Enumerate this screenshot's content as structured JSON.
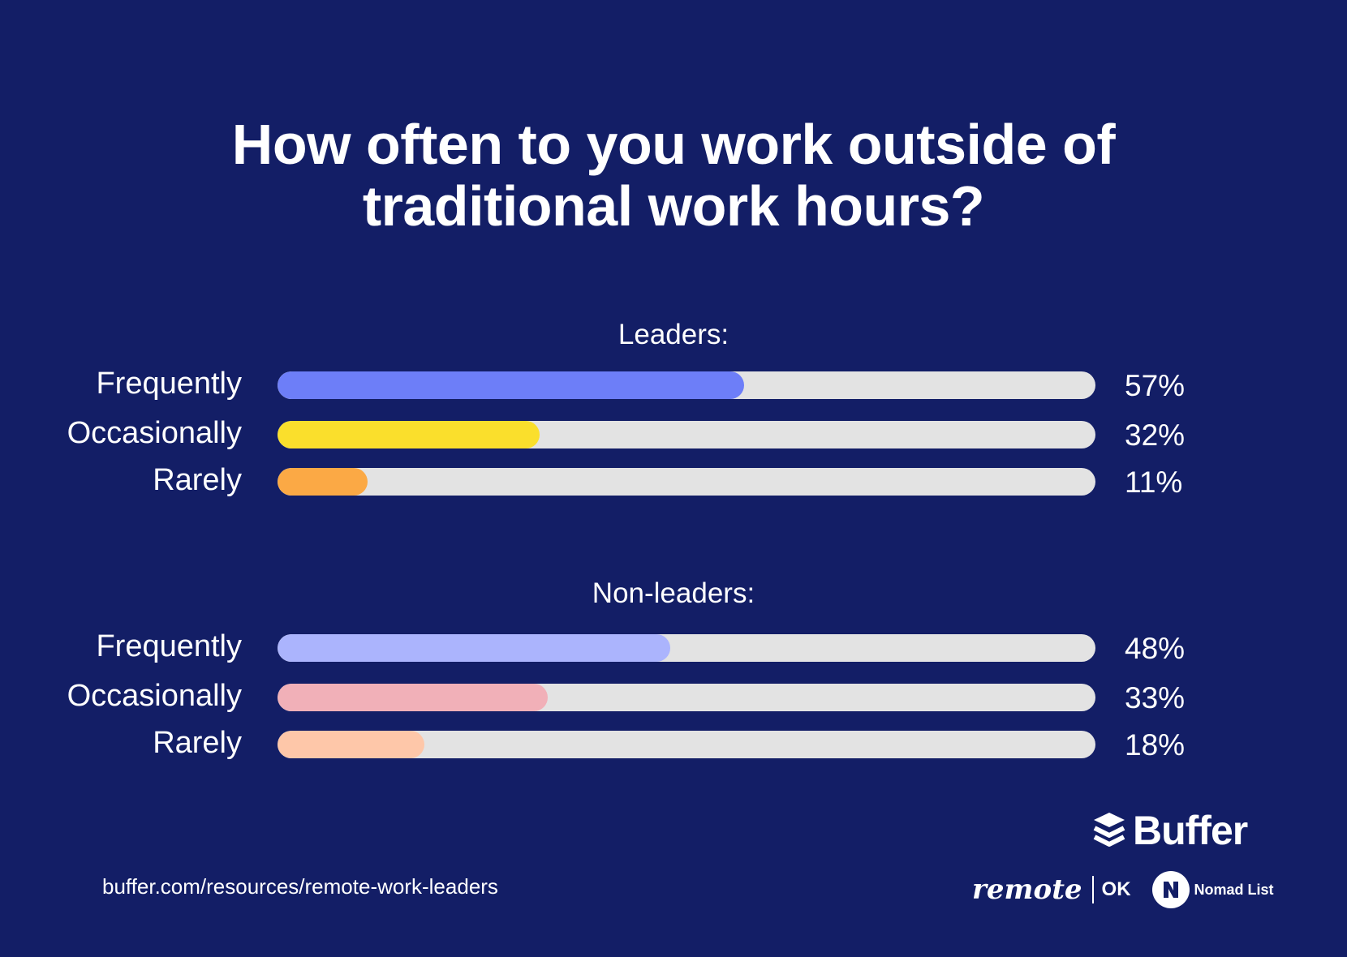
{
  "title_lines": [
    "How often to you work outside of",
    "traditional work hours?"
  ],
  "colors": {
    "background": "#131e66",
    "track": "#e3e3e3",
    "leaders": [
      "#6d7ef8",
      "#fadf2c",
      "#fba945"
    ],
    "non_leaders": [
      "#abb4fd",
      "#f1b0b8",
      "#fec7a9"
    ]
  },
  "chart_data": {
    "type": "bar",
    "orientation": "horizontal",
    "title": "How often to you work outside of traditional work hours?",
    "categories": [
      "Frequently",
      "Occasionally",
      "Rarely"
    ],
    "xlim": [
      0,
      100
    ],
    "groups": [
      {
        "name": "Leaders:",
        "bars": [
          {
            "label": "Frequently",
            "value": 57,
            "value_label": "57%"
          },
          {
            "label": "Occasionally",
            "value": 32,
            "value_label": "32%"
          },
          {
            "label": "Rarely",
            "value": 11,
            "value_label": "11%"
          }
        ]
      },
      {
        "name": "Non-leaders:",
        "bars": [
          {
            "label": "Frequently",
            "value": 48,
            "value_label": "48%"
          },
          {
            "label": "Occasionally",
            "value": 33,
            "value_label": "33%"
          },
          {
            "label": "Rarely",
            "value": 18,
            "value_label": "18%"
          }
        ]
      }
    ]
  },
  "footer": {
    "url": "buffer.com/resources/remote-work-leaders",
    "brand": "Buffer",
    "partner_remote": "remote",
    "partner_ok": "OK",
    "partner_nomad": "Nomad List",
    "icons": [
      "buffer-stack-icon",
      "nomad-list-logo-icon"
    ]
  }
}
